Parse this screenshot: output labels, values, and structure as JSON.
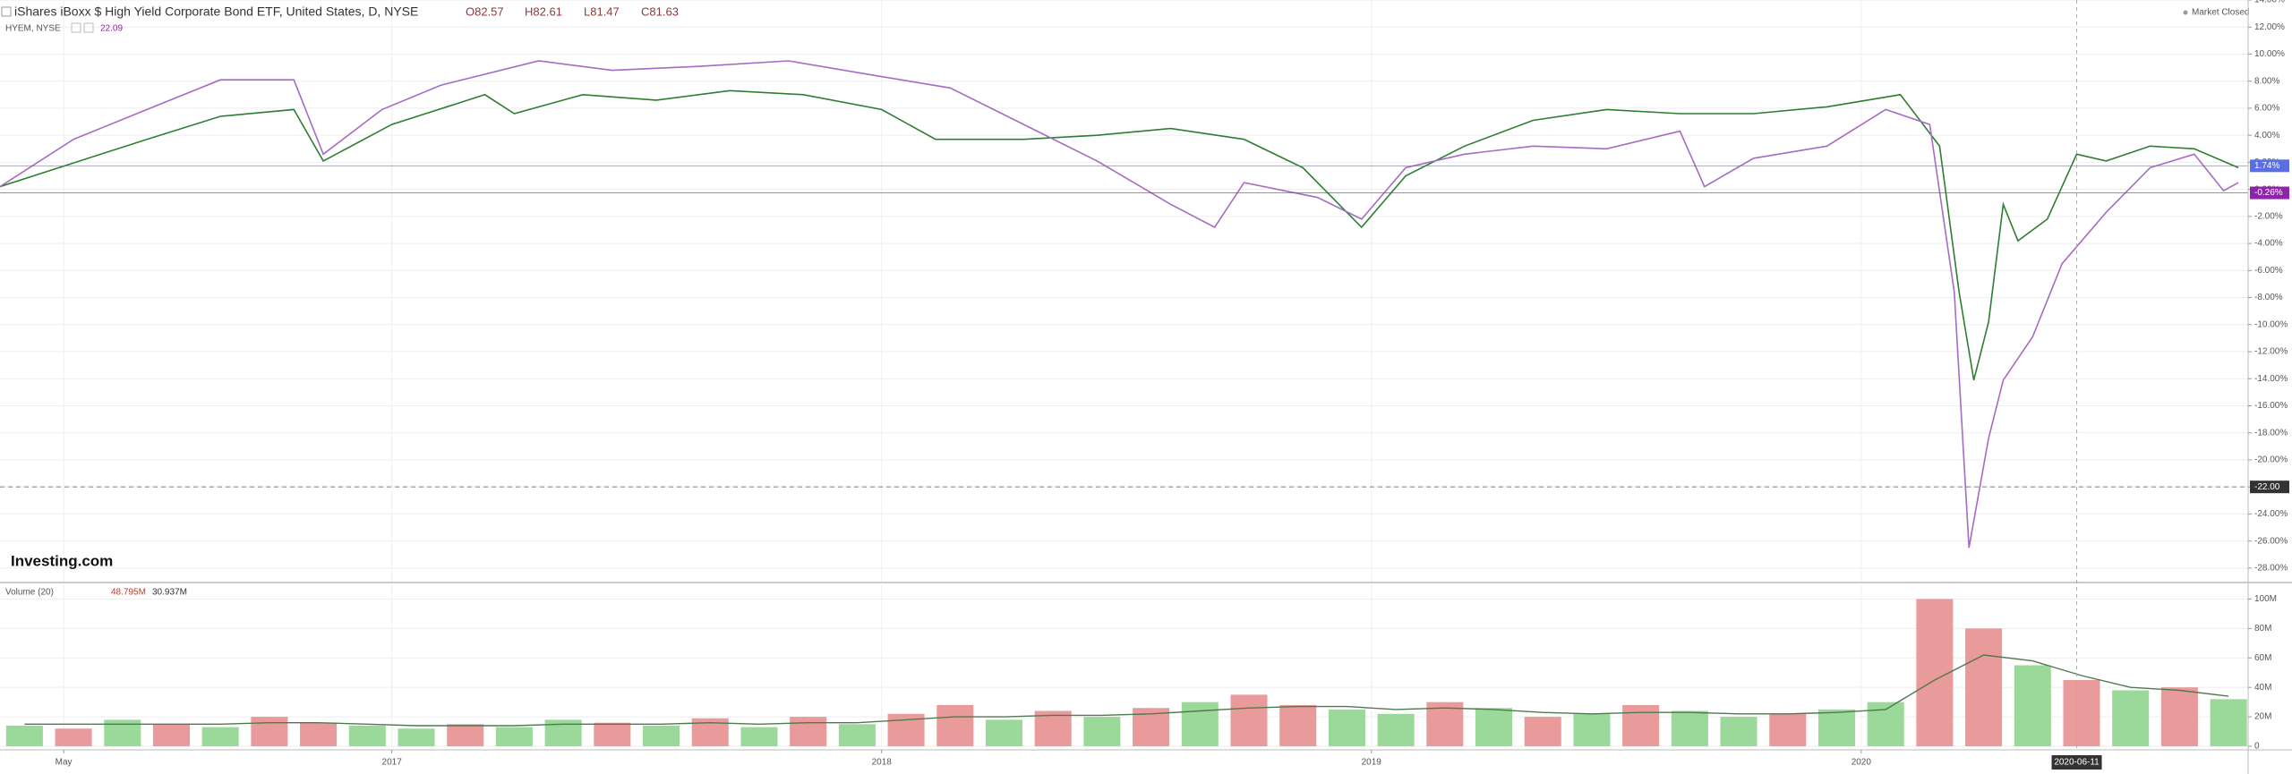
{
  "market_status": "Market Closed",
  "logo": "Investing.com",
  "chart_data": [
    {
      "type": "line",
      "title": "iShares iBoxx $ High Yield Corporate Bond ETF, United States, D, NYSE",
      "ohlc": [
        "O82.57",
        "H82.61",
        "L81.47",
        "C81.63"
      ],
      "subtitle": "HYEM, NYSE",
      "subtitle_value": "22.09",
      "xlim": [
        2016.2,
        2020.79
      ],
      "ylim": [
        -29,
        14
      ],
      "yticks": [
        {
          "value": -28,
          "label": "-28.00%"
        },
        {
          "value": -26,
          "label": "-26.00%"
        },
        {
          "value": -24,
          "label": "-24.00%"
        },
        {
          "value": -22,
          "label": "-22.00%"
        },
        {
          "value": -20,
          "label": "-20.00%"
        },
        {
          "value": -18,
          "label": "-18.00%"
        },
        {
          "value": -16,
          "label": "-16.00%"
        },
        {
          "value": -14,
          "label": "-14.00%"
        },
        {
          "value": -12,
          "label": "-12.00%"
        },
        {
          "value": -10,
          "label": "-10.00%"
        },
        {
          "value": -8,
          "label": "-8.00%"
        },
        {
          "value": -6,
          "label": "-6.00%"
        },
        {
          "value": -4,
          "label": "-4.00%"
        },
        {
          "value": -2,
          "label": "-2.00%"
        },
        {
          "value": 0,
          "label": "0.00%"
        },
        {
          "value": 2,
          "label": "2.00%"
        },
        {
          "value": 4,
          "label": "4.00%"
        },
        {
          "value": 6,
          "label": "6.00%"
        },
        {
          "value": 8,
          "label": "8.00%"
        },
        {
          "value": 10,
          "label": "10.00%"
        },
        {
          "value": 12,
          "label": "12.00%"
        },
        {
          "value": 14,
          "label": "14.00%"
        }
      ],
      "grid": true,
      "markers": [
        {
          "value": 1.74,
          "label": "1.74%",
          "color": "#5b6ee1"
        },
        {
          "value": -0.26,
          "label": "-0.26%",
          "color": "#8e24aa"
        },
        {
          "value": -22,
          "label": "-22.00",
          "color": "#333333"
        }
      ],
      "series": [
        {
          "color": "#2e7d32",
          "x": [
            2016.2,
            2016.5,
            2016.65,
            2016.8,
            2016.86,
            2017.0,
            2017.19,
            2017.25,
            2017.39,
            2017.54,
            2017.69,
            2017.84,
            2018.0,
            2018.11,
            2018.29,
            2018.44,
            2018.59,
            2018.74,
            2018.86,
            2018.98,
            2019.07,
            2019.19,
            2019.33,
            2019.48,
            2019.63,
            2019.78,
            2019.93,
            2020.08,
            2020.16,
            2020.2,
            2020.23,
            2020.26,
            2020.29,
            2020.32,
            2020.38,
            2020.44,
            2020.5,
            2020.59,
            2020.68,
            2020.77
          ],
          "values": [
            0.2,
            3.7,
            5.4,
            5.9,
            2.1,
            4.8,
            7.0,
            5.6,
            7.0,
            6.6,
            7.3,
            7.0,
            5.9,
            3.7,
            3.7,
            4.0,
            4.5,
            3.7,
            1.6,
            -2.8,
            1.0,
            3.2,
            5.1,
            5.9,
            5.6,
            5.6,
            6.1,
            7.0,
            3.2,
            -7.6,
            -14.1,
            -9.8,
            -1.1,
            -3.8,
            -2.2,
            2.6,
            2.1,
            3.2,
            3.0,
            1.6
          ]
        },
        {
          "color": "#a66bc2",
          "x": [
            2016.2,
            2016.35,
            2016.5,
            2016.65,
            2016.8,
            2016.86,
            2016.98,
            2017.1,
            2017.3,
            2017.45,
            2017.63,
            2017.81,
            2017.99,
            2018.14,
            2018.29,
            2018.44,
            2018.59,
            2018.68,
            2018.74,
            2018.89,
            2018.98,
            2019.07,
            2019.19,
            2019.33,
            2019.48,
            2019.63,
            2019.68,
            2019.78,
            2019.93,
            2020.05,
            2020.14,
            2020.19,
            2020.22,
            2020.26,
            2020.29,
            2020.35,
            2020.41,
            2020.5,
            2020.59,
            2020.68,
            2020.74,
            2020.77
          ],
          "values": [
            0.2,
            3.7,
            5.9,
            8.1,
            8.1,
            2.6,
            5.9,
            7.7,
            9.5,
            8.8,
            9.1,
            9.5,
            8.4,
            7.5,
            4.8,
            2.1,
            -1.1,
            -2.8,
            0.5,
            -0.6,
            -2.2,
            1.6,
            2.6,
            3.2,
            3.0,
            4.3,
            0.2,
            2.3,
            3.2,
            5.9,
            4.8,
            -7.6,
            -26.5,
            -18.4,
            -14.1,
            -10.9,
            -5.5,
            -1.7,
            1.6,
            2.6,
            -0.1,
            0.5
          ]
        }
      ]
    },
    {
      "type": "bar",
      "title": "Volume (20)",
      "legend_values": [
        "48.795M",
        "30.937M"
      ],
      "xlim": [
        2016.2,
        2020.79
      ],
      "ylim": [
        0,
        110
      ],
      "yticks": [
        0,
        {
          "value": 20,
          "label": "20M"
        },
        {
          "value": 40,
          "label": "40M"
        },
        {
          "value": 60,
          "label": "60M"
        },
        {
          "value": 80,
          "label": "80M"
        },
        {
          "value": 100,
          "label": "100M"
        }
      ],
      "xticks": [
        {
          "value": 2016.33,
          "label": "May"
        },
        2017,
        2018,
        2019,
        2020
      ],
      "crosshair": {
        "value": 2020.44,
        "label": "2020-06-11"
      },
      "x": [
        2016.25,
        2016.35,
        2016.45,
        2016.55,
        2016.65,
        2016.75,
        2016.85,
        2016.95,
        2017.05,
        2017.15,
        2017.25,
        2017.35,
        2017.45,
        2017.55,
        2017.65,
        2017.75,
        2017.85,
        2017.95,
        2018.05,
        2018.15,
        2018.25,
        2018.35,
        2018.45,
        2018.55,
        2018.65,
        2018.75,
        2018.85,
        2018.95,
        2019.05,
        2019.15,
        2019.25,
        2019.35,
        2019.45,
        2019.55,
        2019.65,
        2019.75,
        2019.85,
        2019.95,
        2020.05,
        2020.15,
        2020.25,
        2020.35,
        2020.45,
        2020.55,
        2020.65,
        2020.75
      ],
      "values": [
        14,
        12,
        18,
        15,
        13,
        20,
        16,
        14,
        12,
        15,
        13,
        18,
        16,
        14,
        19,
        13,
        20,
        15,
        22,
        28,
        18,
        24,
        20,
        26,
        30,
        35,
        28,
        25,
        22,
        30,
        26,
        20,
        22,
        28,
        24,
        20,
        22,
        25,
        30,
        100,
        80,
        55,
        45,
        38,
        40,
        32
      ],
      "colors": [
        "#9ad99a",
        "#e99a9a",
        "#9ad99a",
        "#e99a9a",
        "#9ad99a",
        "#e99a9a",
        "#e99a9a",
        "#9ad99a",
        "#9ad99a",
        "#e99a9a",
        "#9ad99a",
        "#9ad99a",
        "#e99a9a",
        "#9ad99a",
        "#e99a9a",
        "#9ad99a",
        "#e99a9a",
        "#9ad99a",
        "#e99a9a",
        "#e99a9a",
        "#9ad99a",
        "#e99a9a",
        "#9ad99a",
        "#e99a9a",
        "#9ad99a",
        "#e99a9a",
        "#e99a9a",
        "#9ad99a",
        "#9ad99a",
        "#e99a9a",
        "#9ad99a",
        "#e99a9a",
        "#9ad99a",
        "#e99a9a",
        "#9ad99a",
        "#9ad99a",
        "#e99a9a",
        "#9ad99a",
        "#9ad99a",
        "#e99a9a",
        "#e99a9a",
        "#9ad99a",
        "#e99a9a",
        "#9ad99a",
        "#e99a9a",
        "#9ad99a"
      ],
      "ma_color": "#4f7a4f",
      "ma": [
        15,
        15,
        15,
        15,
        15,
        16,
        16,
        15,
        14,
        14,
        14,
        15,
        15,
        15,
        16,
        15,
        16,
        16,
        18,
        20,
        20,
        21,
        21,
        22,
        24,
        26,
        27,
        27,
        25,
        26,
        25,
        23,
        22,
        23,
        23,
        22,
        22,
        23,
        25,
        45,
        62,
        58,
        48,
        40,
        38,
        34
      ]
    }
  ]
}
